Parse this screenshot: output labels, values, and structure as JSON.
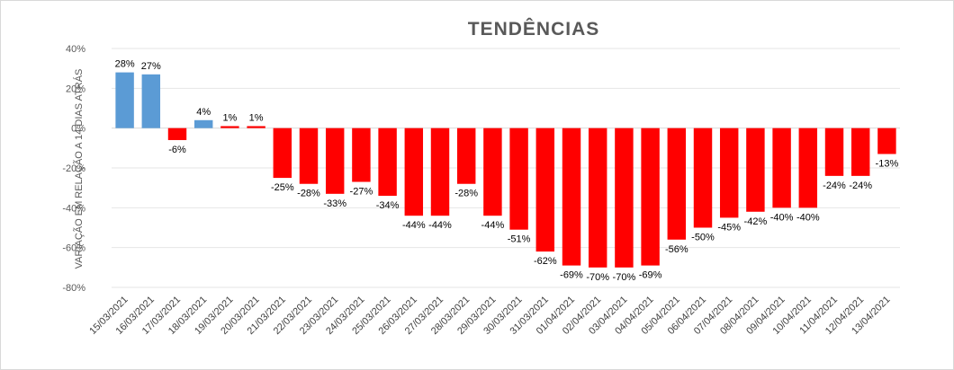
{
  "chart_data": {
    "type": "bar",
    "title": "TENDÊNCIAS",
    "ylabel": "VARIAÇÃO EM RELAÇÃO A 14 DIAS ATRÁS",
    "xlabel": "",
    "ylim": [
      -80,
      40
    ],
    "yticks": [
      40,
      20,
      0,
      -20,
      -40,
      -60,
      -80
    ],
    "ytick_labels": [
      "40%",
      "20%",
      "0%",
      "-20%",
      "-40%",
      "-60%",
      "-80%"
    ],
    "grid": true,
    "legend": false,
    "categories": [
      "15/03/2021",
      "16/03/2021",
      "17/03/2021",
      "18/03/2021",
      "19/03/2021",
      "20/03/2021",
      "21/03/2021",
      "22/03/2021",
      "23/03/2021",
      "24/03/2021",
      "25/03/2021",
      "26/03/2021",
      "27/03/2021",
      "28/03/2021",
      "29/03/2021",
      "30/03/2021",
      "31/03/2021",
      "01/04/2021",
      "02/04/2021",
      "03/04/2021",
      "04/04/2021",
      "05/04/2021",
      "06/04/2021",
      "07/04/2021",
      "08/04/2021",
      "09/04/2021",
      "10/04/2021",
      "11/04/2021",
      "12/04/2021",
      "13/04/2021"
    ],
    "values": [
      28,
      27,
      -6,
      4,
      1,
      1,
      -25,
      -28,
      -33,
      -27,
      -34,
      -44,
      -44,
      -28,
      -44,
      -51,
      -62,
      -69,
      -70,
      -70,
      -69,
      -56,
      -50,
      -45,
      -42,
      -40,
      -40,
      -24,
      -24,
      -13
    ],
    "labels": [
      "28%",
      "27%",
      "-6%",
      "4%",
      "1%",
      "1%",
      "-25%",
      "-28%",
      "-33%",
      "-27%",
      "-34%",
      "-44%",
      "-44%",
      "-28%",
      "-44%",
      "-51%",
      "-62%",
      "-69%",
      "-70%",
      "-70%",
      "-69%",
      "-56%",
      "-50%",
      "-45%",
      "-42%",
      "-40%",
      "-40%",
      "-24%",
      "-24%",
      "-13%"
    ],
    "colors": [
      "#5b9bd5",
      "#5b9bd5",
      "#ff0000",
      "#5b9bd5",
      "#ff0000",
      "#ff0000",
      "#ff0000",
      "#ff0000",
      "#ff0000",
      "#ff0000",
      "#ff0000",
      "#ff0000",
      "#ff0000",
      "#ff0000",
      "#ff0000",
      "#ff0000",
      "#ff0000",
      "#ff0000",
      "#ff0000",
      "#ff0000",
      "#ff0000",
      "#ff0000",
      "#ff0000",
      "#ff0000",
      "#ff0000",
      "#ff0000",
      "#ff0000",
      "#ff0000",
      "#ff0000",
      "#ff0000"
    ]
  }
}
